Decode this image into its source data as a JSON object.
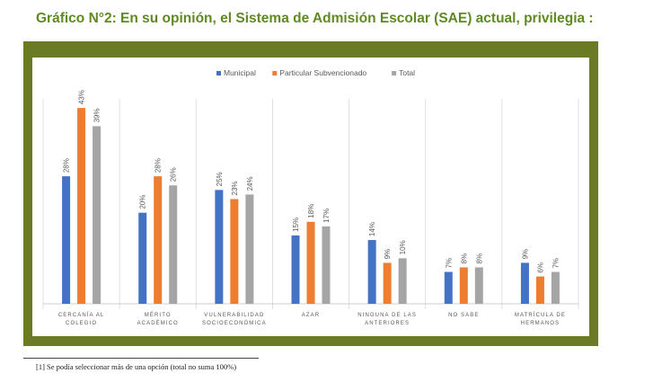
{
  "title": "Gráfico N°2: En su opinión, el Sistema de Admisión Escolar (SAE) actual, privilegia :",
  "footnote": "[1] Se podía seleccionar más de una opción (total no suma 100%)",
  "colors": {
    "frame": "#6b7b25",
    "title": "#5f8a22"
  },
  "chart_data": {
    "type": "bar",
    "title": "",
    "xlabel": "",
    "ylabel": "",
    "ylim": [
      0,
      45
    ],
    "grid": false,
    "legend": "top-center",
    "categories": [
      [
        "CERCANÍA AL",
        "COLEGIO"
      ],
      [
        "MÉRITO",
        "ACADÉMICO"
      ],
      [
        "VULNERABILIDAD",
        "SOCIOECONÓMICA"
      ],
      [
        "AZAR"
      ],
      [
        "NINGUNA DE LAS",
        "ANTERIORES"
      ],
      [
        "NO SABE"
      ],
      [
        "MATRÍCULA DE",
        "HERMANOS"
      ]
    ],
    "series": [
      {
        "name": "Municipal",
        "color": "#4472c4",
        "values": [
          28,
          20,
          25,
          15,
          14,
          7,
          9
        ]
      },
      {
        "name": "Particular Subvencionado",
        "color": "#ed7d31",
        "values": [
          43,
          28,
          23,
          18,
          9,
          8,
          6
        ]
      },
      {
        "name": "Total",
        "color": "#a5a5a5",
        "values": [
          39,
          26,
          24,
          17,
          10,
          8,
          7
        ]
      }
    ]
  }
}
